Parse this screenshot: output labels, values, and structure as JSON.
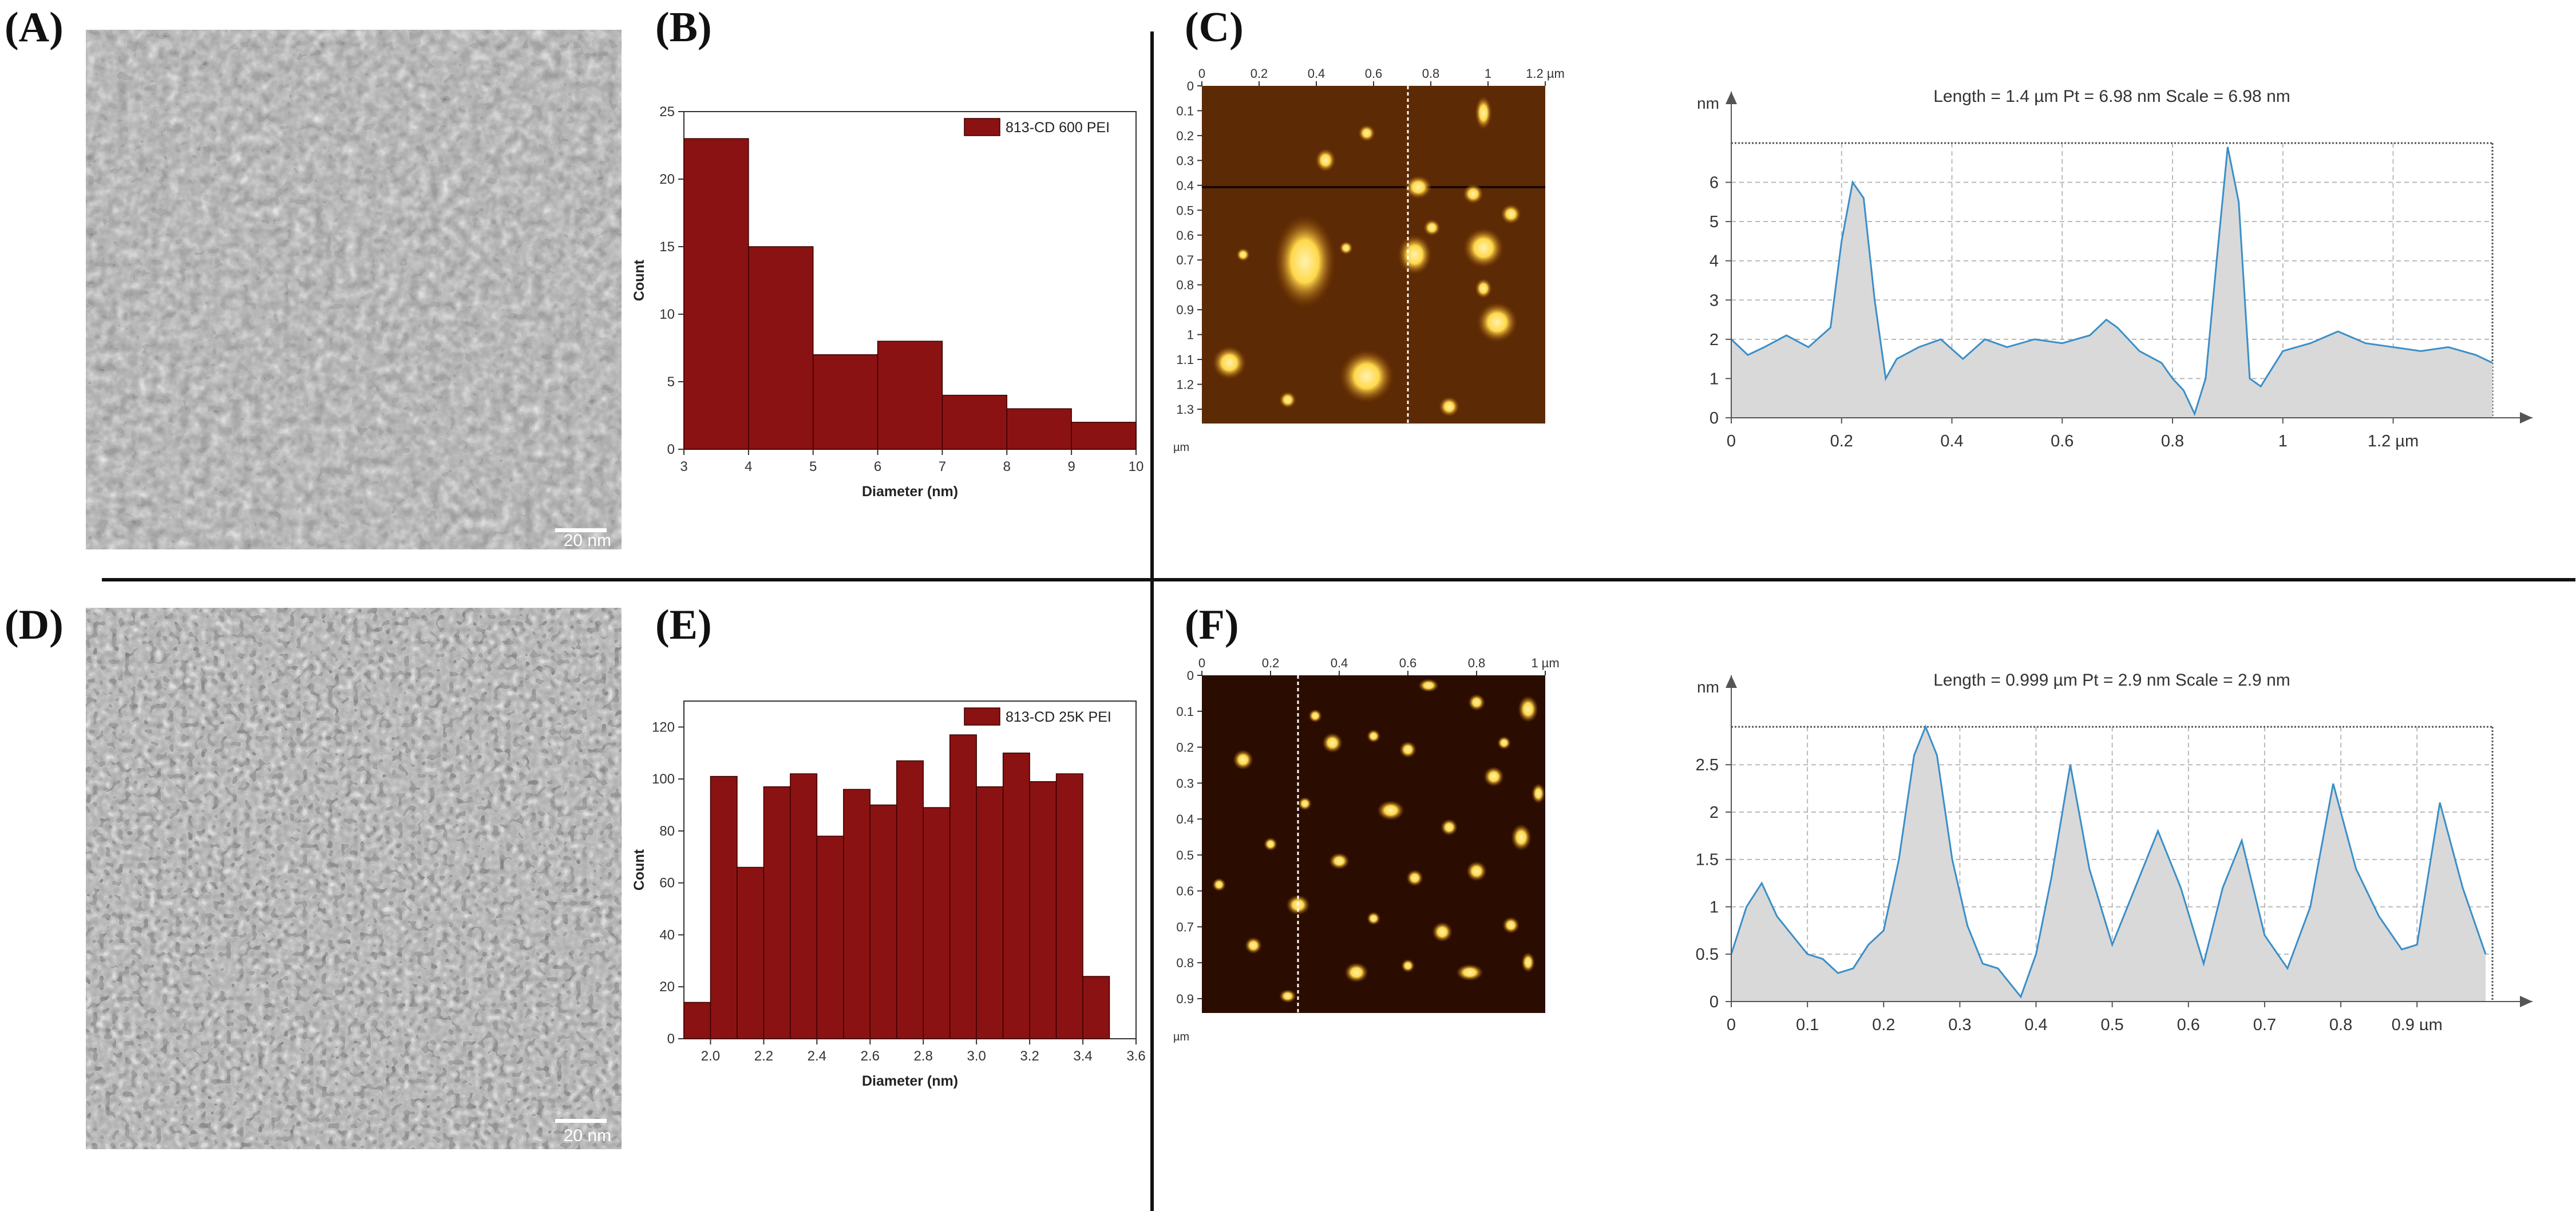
{
  "panels": {
    "A": {
      "label": "(A)",
      "scale_bar": "20 nm"
    },
    "B": {
      "label": "(B)"
    },
    "C": {
      "label": "(C)"
    },
    "D": {
      "label": "(D)",
      "scale_bar": "20 nm"
    },
    "E": {
      "label": "(E)"
    },
    "F": {
      "label": "(F)"
    }
  },
  "colors": {
    "bar_fill": "#8b1212",
    "bar_edge": "#3a0000",
    "profile_line": "#3a8fc8",
    "profile_fill": "#d9d9d9",
    "afm_dark": "#2a0d00",
    "afm_bright": "#ffd84a"
  },
  "chart_data": [
    {
      "id": "B",
      "type": "bar",
      "title": "",
      "legend": "813-CD 600 PEI",
      "legend_position": "top-right",
      "xlabel": "Diameter (nm)",
      "ylabel": "Count",
      "bin_edges": [
        3,
        4,
        5,
        6,
        7,
        8,
        9,
        10
      ],
      "values": [
        23,
        15,
        7,
        8,
        4,
        3,
        2
      ],
      "xlim": [
        3,
        10
      ],
      "ylim": [
        0,
        25
      ],
      "xticks": [
        3,
        4,
        5,
        6,
        7,
        8,
        9,
        10
      ],
      "yticks": [
        0,
        5,
        10,
        15,
        20,
        25
      ]
    },
    {
      "id": "E",
      "type": "bar",
      "title": "",
      "legend": "813-CD 25K PEI",
      "legend_position": "top-right",
      "xlabel": "Diameter (nm)",
      "ylabel": "Count",
      "bin_edges": [
        1.9,
        2.0,
        2.1,
        2.2,
        2.3,
        2.4,
        2.5,
        2.6,
        2.7,
        2.8,
        2.9,
        3.0,
        3.1,
        3.2,
        3.3,
        3.4,
        3.5
      ],
      "values": [
        14,
        101,
        66,
        97,
        102,
        78,
        96,
        90,
        107,
        89,
        117,
        97,
        110,
        99,
        102,
        24
      ],
      "xlim": [
        1.9,
        3.6
      ],
      "ylim": [
        0,
        130
      ],
      "xticks": [
        2.0,
        2.2,
        2.4,
        2.6,
        2.8,
        3.0,
        3.2,
        3.4,
        3.6
      ],
      "xtick_labels": [
        "2.0",
        "2.2",
        "2.4",
        "2.6",
        "2.8",
        "3.0",
        "3.2",
        "3.4",
        "3.6"
      ],
      "yticks": [
        0,
        20,
        40,
        60,
        80,
        100,
        120
      ]
    },
    {
      "id": "C-profile",
      "type": "area",
      "title": "Length = 1.4 µm  Pt = 6.98 nm  Scale = 6.98 nm",
      "xlabel": "µm",
      "ylabel": "nm",
      "x": [
        0,
        0.03,
        0.06,
        0.1,
        0.14,
        0.18,
        0.2,
        0.22,
        0.24,
        0.26,
        0.28,
        0.3,
        0.34,
        0.38,
        0.42,
        0.46,
        0.5,
        0.55,
        0.6,
        0.65,
        0.68,
        0.7,
        0.74,
        0.78,
        0.8,
        0.82,
        0.84,
        0.86,
        0.88,
        0.9,
        0.92,
        0.94,
        0.96,
        1.0,
        1.05,
        1.1,
        1.15,
        1.2,
        1.25,
        1.3,
        1.35,
        1.38
      ],
      "y": [
        2.0,
        1.6,
        1.8,
        2.1,
        1.8,
        2.3,
        4.5,
        6.0,
        5.6,
        3.0,
        1.0,
        1.5,
        1.8,
        2.0,
        1.5,
        2.0,
        1.8,
        2.0,
        1.9,
        2.1,
        2.5,
        2.3,
        1.7,
        1.4,
        1.0,
        0.7,
        0.1,
        1.0,
        4.0,
        6.9,
        5.5,
        1.0,
        0.8,
        1.7,
        1.9,
        2.2,
        1.9,
        1.8,
        1.7,
        1.8,
        1.6,
        1.4
      ],
      "xlim": [
        0,
        1.38
      ],
      "ylim": [
        0,
        7
      ],
      "xticks": [
        0,
        0.2,
        0.4,
        0.6,
        0.8,
        1,
        1.2
      ],
      "xtick_labels": [
        "0",
        "0.2",
        "0.4",
        "0.6",
        "0.8",
        "1",
        "1.2 µm"
      ],
      "yticks": [
        0,
        1,
        2,
        3,
        4,
        5,
        6
      ],
      "unit_y": "nm"
    },
    {
      "id": "F-profile",
      "type": "area",
      "title": "Length = 0.999 µm  Pt = 2.9 nm  Scale = 2.9 nm",
      "xlabel": "µm",
      "ylabel": "nm",
      "x": [
        0,
        0.02,
        0.04,
        0.06,
        0.08,
        0.1,
        0.12,
        0.14,
        0.16,
        0.18,
        0.2,
        0.22,
        0.24,
        0.255,
        0.27,
        0.29,
        0.31,
        0.33,
        0.35,
        0.37,
        0.38,
        0.4,
        0.42,
        0.445,
        0.47,
        0.5,
        0.53,
        0.56,
        0.59,
        0.62,
        0.645,
        0.67,
        0.7,
        0.73,
        0.76,
        0.79,
        0.82,
        0.85,
        0.88,
        0.9,
        0.93,
        0.96,
        0.99
      ],
      "y": [
        0.5,
        1.0,
        1.25,
        0.9,
        0.7,
        0.5,
        0.45,
        0.3,
        0.35,
        0.6,
        0.75,
        1.5,
        2.6,
        2.9,
        2.6,
        1.5,
        0.8,
        0.4,
        0.35,
        0.15,
        0.05,
        0.5,
        1.3,
        2.5,
        1.4,
        0.6,
        1.2,
        1.8,
        1.2,
        0.4,
        1.2,
        1.7,
        0.7,
        0.35,
        1.0,
        2.3,
        1.4,
        0.9,
        0.55,
        0.6,
        2.1,
        1.2,
        0.5
      ],
      "xlim": [
        0,
        0.999
      ],
      "ylim": [
        0,
        2.9
      ],
      "xticks": [
        0,
        0.1,
        0.2,
        0.3,
        0.4,
        0.5,
        0.6,
        0.7,
        0.8,
        0.9
      ],
      "xtick_labels": [
        "0",
        "0.1",
        "0.2",
        "0.3",
        "0.4",
        "0.5",
        "0.6",
        "0.7",
        "0.8",
        "0.9 µm"
      ],
      "yticks": [
        0,
        0.5,
        1,
        1.5,
        2,
        2.5
      ],
      "unit_y": "nm"
    }
  ],
  "afm_images": [
    {
      "id": "C-afm",
      "x_ticks": [
        "0",
        "0.2",
        "0.4",
        "0.6",
        "0.8",
        "1",
        "1.2 µm"
      ],
      "y_ticks": [
        "0",
        "0.1",
        "0.2",
        "0.3",
        "0.4",
        "0.5",
        "0.6",
        "0.7",
        "0.8",
        "0.9",
        "1",
        "1.1",
        "1.2",
        "1.3"
      ],
      "unit": "µm"
    },
    {
      "id": "F-afm",
      "x_ticks": [
        "0",
        "0.2",
        "0.4",
        "0.6",
        "0.8",
        "1 µm"
      ],
      "y_ticks": [
        "0",
        "0.1",
        "0.2",
        "0.3",
        "0.4",
        "0.5",
        "0.6",
        "0.7",
        "0.8",
        "0.9"
      ],
      "unit": "µm"
    }
  ]
}
